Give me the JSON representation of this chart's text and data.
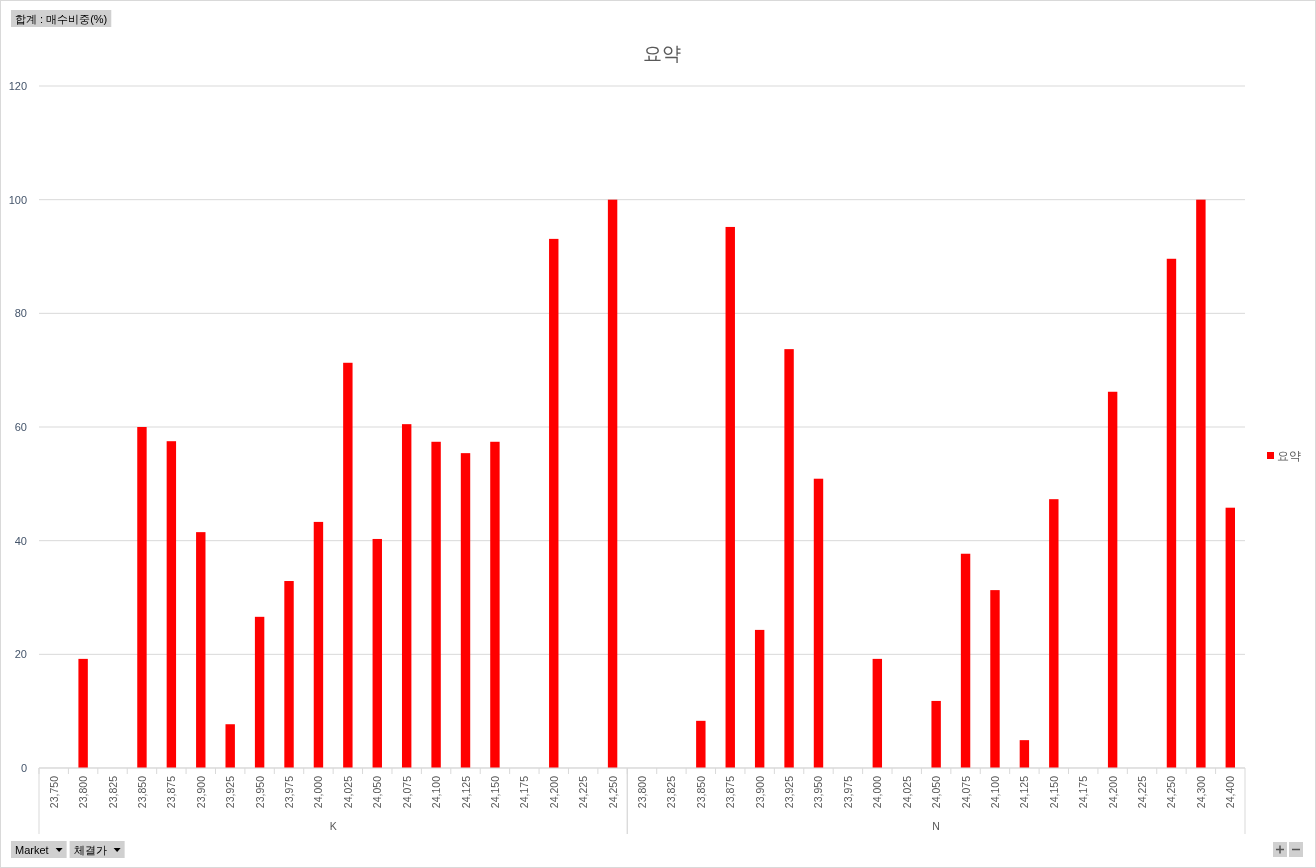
{
  "chart_data": {
    "type": "bar",
    "title": "요약",
    "categories": [
      "23,750",
      "23,800",
      "23,825",
      "23,850",
      "23,875",
      "23,900",
      "23,925",
      "23,950",
      "23,975",
      "24,000",
      "24,025",
      "24,050",
      "24,075",
      "24,100",
      "24,125",
      "24,150",
      "24,175",
      "24,200",
      "24,225",
      "24,250",
      "23,800",
      "23,825",
      "23,850",
      "23,875",
      "23,900",
      "23,925",
      "23,950",
      "23,975",
      "24,000",
      "24,025",
      "24,050",
      "24,075",
      "24,100",
      "24,125",
      "24,150",
      "24,175",
      "24,200",
      "24,225",
      "24,250",
      "24,300",
      "24,400"
    ],
    "series": [
      {
        "name": "요약",
        "color": "#ff0000",
        "values": [
          null,
          19.2,
          null,
          60.0,
          57.5,
          41.5,
          7.7,
          26.6,
          32.9,
          43.3,
          71.3,
          40.3,
          60.5,
          57.4,
          55.4,
          57.4,
          null,
          93.1,
          null,
          100,
          null,
          null,
          8.3,
          95.2,
          24.3,
          73.7,
          50.9,
          null,
          19.2,
          null,
          11.8,
          37.7,
          31.3,
          4.9,
          47.3,
          null,
          66.2,
          null,
          89.6,
          100,
          45.8
        ]
      }
    ],
    "ylim": [
      0,
      120
    ],
    "yticks": [
      0,
      20,
      40,
      60,
      80,
      100,
      120
    ],
    "grid": "y",
    "legend": "right",
    "annotations": [
      "합계 : 매수비중(%)",
      "Market",
      "체결가",
      "K",
      "N"
    ]
  }
}
